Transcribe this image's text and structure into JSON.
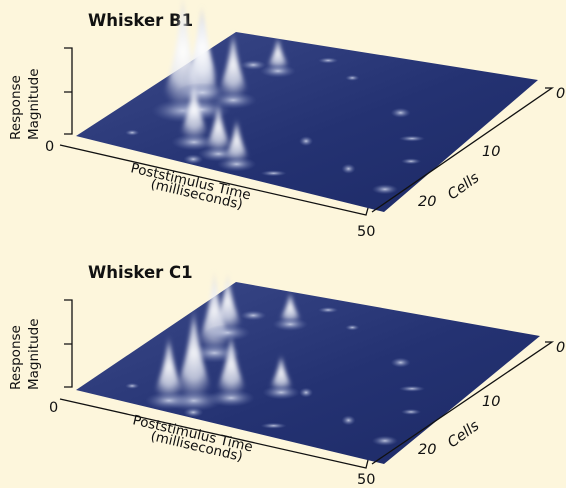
{
  "chart_data": [
    {
      "type": "surface",
      "title": "Whisker B1",
      "ylabel": [
        "Response",
        "Magnitude"
      ],
      "y_ticks": [
        "0"
      ],
      "xlabel": [
        "Poststimulus Time",
        "(milliseconds)"
      ],
      "x_ticks": [
        "50"
      ],
      "zlabel": "Cells",
      "z_ticks": [
        "0",
        "10",
        "20"
      ],
      "peaks": [
        {
          "x": 8,
          "z": 9,
          "y": 1.0
        },
        {
          "x": 10,
          "z": 10,
          "y": 0.9
        },
        {
          "x": 7,
          "z": 13,
          "y": 0.75
        },
        {
          "x": 12,
          "z": 13,
          "y": 0.6
        },
        {
          "x": 15,
          "z": 4,
          "y": 0.55
        },
        {
          "x": 20,
          "z": 3,
          "y": 0.45
        },
        {
          "x": 24,
          "z": 2,
          "y": 0.4
        },
        {
          "x": 12,
          "z": 20,
          "y": 0.3
        }
      ]
    },
    {
      "type": "surface",
      "title": "Whisker C1",
      "ylabel": [
        "Response",
        "Magnitude"
      ],
      "y_ticks": [
        "0"
      ],
      "xlabel": [
        "Poststimulus Time",
        "(milliseconds)"
      ],
      "x_ticks": [
        "50"
      ],
      "zlabel": "Cells",
      "z_ticks": [
        "0",
        "10",
        "20"
      ],
      "peaks": [
        {
          "x": 10,
          "z": 12,
          "y": 0.75
        },
        {
          "x": 8,
          "z": 16,
          "y": 0.55
        },
        {
          "x": 20,
          "z": 5,
          "y": 0.6
        },
        {
          "x": 16,
          "z": 3,
          "y": 0.85
        },
        {
          "x": 13,
          "z": 2,
          "y": 0.6
        },
        {
          "x": 25,
          "z": 8,
          "y": 0.35
        },
        {
          "x": 14,
          "z": 20,
          "y": 0.3
        }
      ]
    }
  ]
}
